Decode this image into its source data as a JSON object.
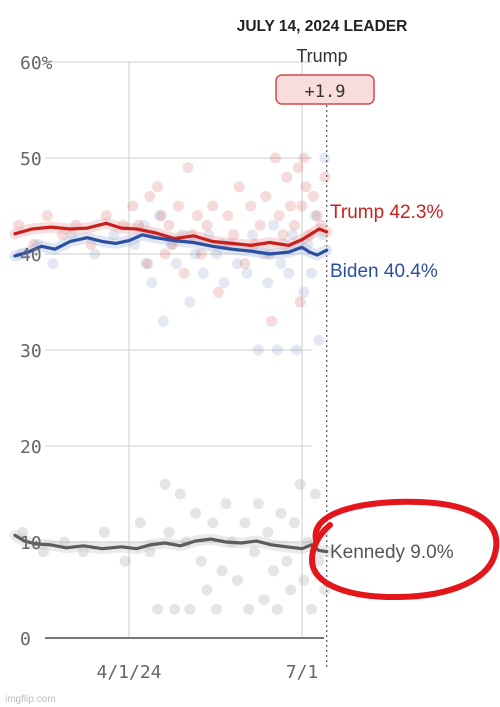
{
  "header": {
    "leader_heading": "JULY 14, 2024 LEADER",
    "leader_name": "Trump",
    "leader_margin": "+1.9"
  },
  "watermark": "imgflip.com",
  "colors": {
    "trump": "#c8201e",
    "biden": "#2b4fa0",
    "kennedy": "#5c5c5c",
    "circle": "#e3161c",
    "grid": "#d6d6d6",
    "axis": "#777777",
    "tick_text": "#666666",
    "badge_fill": "#f9dcdc",
    "badge_stroke": "#d14a4a"
  },
  "annotation": {
    "shape": "hand-drawn ellipse",
    "target": "Kennedy 9.0%"
  },
  "chart_data": {
    "type": "line",
    "ylim": [
      0,
      60
    ],
    "y_ticks": [
      0,
      10,
      20,
      30,
      40,
      50,
      60
    ],
    "y_tick_labels": [
      "0",
      "10",
      "20",
      "30",
      "40",
      "50",
      "60%"
    ],
    "x_tick_labels": [
      {
        "label": "4/1/24",
        "date": "2024-04-01"
      },
      {
        "label": "7/1",
        "date": "2024-07-01"
      }
    ],
    "x_range": [
      "2024-02-01",
      "2024-07-14"
    ],
    "series": [
      {
        "name": "Trump",
        "label": "Trump 42.3%",
        "color": "#c8201e",
        "points": [
          [
            "2024-02-01",
            42.1
          ],
          [
            "2024-02-10",
            42.6
          ],
          [
            "2024-02-20",
            42.8
          ],
          [
            "2024-03-01",
            42.6
          ],
          [
            "2024-03-10",
            42.7
          ],
          [
            "2024-03-20",
            43.2
          ],
          [
            "2024-03-28",
            42.7
          ],
          [
            "2024-04-05",
            42.6
          ],
          [
            "2024-04-15",
            42.2
          ],
          [
            "2024-04-25",
            41.6
          ],
          [
            "2024-05-05",
            41.9
          ],
          [
            "2024-05-15",
            41.3
          ],
          [
            "2024-05-25",
            41.1
          ],
          [
            "2024-06-04",
            40.9
          ],
          [
            "2024-06-14",
            41.2
          ],
          [
            "2024-06-24",
            40.9
          ],
          [
            "2024-07-01",
            41.5
          ],
          [
            "2024-07-06",
            42.1
          ],
          [
            "2024-07-10",
            42.6
          ],
          [
            "2024-07-14",
            42.3
          ]
        ]
      },
      {
        "name": "Biden",
        "label": "Biden 40.4%",
        "color": "#2b4fa0",
        "points": [
          [
            "2024-02-01",
            39.8
          ],
          [
            "2024-02-08",
            40.2
          ],
          [
            "2024-02-15",
            40.8
          ],
          [
            "2024-02-22",
            40.5
          ],
          [
            "2024-03-01",
            41.3
          ],
          [
            "2024-03-10",
            41.7
          ],
          [
            "2024-03-18",
            41.3
          ],
          [
            "2024-03-25",
            41.1
          ],
          [
            "2024-04-01",
            41.4
          ],
          [
            "2024-04-08",
            42.0
          ],
          [
            "2024-04-15",
            41.7
          ],
          [
            "2024-04-25",
            41.4
          ],
          [
            "2024-05-05",
            41.2
          ],
          [
            "2024-05-15",
            40.8
          ],
          [
            "2024-05-25",
            40.5
          ],
          [
            "2024-06-04",
            40.3
          ],
          [
            "2024-06-14",
            40.0
          ],
          [
            "2024-06-24",
            40.2
          ],
          [
            "2024-07-01",
            40.7
          ],
          [
            "2024-07-05",
            40.2
          ],
          [
            "2024-07-09",
            39.9
          ],
          [
            "2024-07-14",
            40.4
          ]
        ]
      },
      {
        "name": "Kennedy",
        "label": "Kennedy 9.0%",
        "color": "#5c5c5c",
        "points": [
          [
            "2024-02-01",
            10.7
          ],
          [
            "2024-02-06",
            10.1
          ],
          [
            "2024-02-12",
            9.8
          ],
          [
            "2024-02-20",
            9.7
          ],
          [
            "2024-02-28",
            9.4
          ],
          [
            "2024-03-08",
            9.6
          ],
          [
            "2024-03-18",
            9.3
          ],
          [
            "2024-03-28",
            9.5
          ],
          [
            "2024-04-05",
            9.3
          ],
          [
            "2024-04-12",
            9.7
          ],
          [
            "2024-04-20",
            9.9
          ],
          [
            "2024-04-28",
            9.6
          ],
          [
            "2024-05-06",
            10.1
          ],
          [
            "2024-05-14",
            10.3
          ],
          [
            "2024-05-22",
            10.0
          ],
          [
            "2024-05-30",
            9.9
          ],
          [
            "2024-06-07",
            10.1
          ],
          [
            "2024-06-15",
            9.7
          ],
          [
            "2024-06-23",
            9.5
          ],
          [
            "2024-07-01",
            9.3
          ],
          [
            "2024-07-06",
            9.7
          ],
          [
            "2024-07-10",
            9.1
          ],
          [
            "2024-07-14",
            9.0
          ]
        ]
      }
    ],
    "polls": {
      "trump": [
        [
          "2024-02-03",
          43
        ],
        [
          "2024-02-11",
          41
        ],
        [
          "2024-02-18",
          44
        ],
        [
          "2024-02-26",
          42
        ],
        [
          "2024-03-04",
          43
        ],
        [
          "2024-03-12",
          41
        ],
        [
          "2024-03-20",
          44
        ],
        [
          "2024-03-29",
          43
        ],
        [
          "2024-04-03",
          45
        ],
        [
          "2024-04-06",
          43
        ],
        [
          "2024-04-10",
          39
        ],
        [
          "2024-04-12",
          46
        ],
        [
          "2024-04-14",
          42
        ],
        [
          "2024-04-16",
          47
        ],
        [
          "2024-04-18",
          44
        ],
        [
          "2024-04-20",
          40
        ],
        [
          "2024-04-22",
          43
        ],
        [
          "2024-04-24",
          41
        ],
        [
          "2024-04-27",
          45
        ],
        [
          "2024-04-30",
          38
        ],
        [
          "2024-05-02",
          49
        ],
        [
          "2024-05-04",
          42
        ],
        [
          "2024-05-07",
          44
        ],
        [
          "2024-05-09",
          40
        ],
        [
          "2024-05-12",
          43
        ],
        [
          "2024-05-15",
          45
        ],
        [
          "2024-05-18",
          36
        ],
        [
          "2024-05-20",
          41
        ],
        [
          "2024-05-23",
          44
        ],
        [
          "2024-05-26",
          42
        ],
        [
          "2024-05-29",
          47
        ],
        [
          "2024-06-01",
          39
        ],
        [
          "2024-06-04",
          45
        ],
        [
          "2024-06-06",
          41
        ],
        [
          "2024-06-09",
          43
        ],
        [
          "2024-06-12",
          46
        ],
        [
          "2024-06-14",
          40
        ],
        [
          "2024-06-17",
          50
        ],
        [
          "2024-06-19",
          44
        ],
        [
          "2024-06-21",
          42
        ],
        [
          "2024-06-23",
          48
        ],
        [
          "2024-06-25",
          45
        ],
        [
          "2024-06-27",
          43
        ],
        [
          "2024-06-29",
          49
        ],
        [
          "2024-07-01",
          45
        ],
        [
          "2024-07-03",
          47
        ],
        [
          "2024-07-05",
          42
        ],
        [
          "2024-07-07",
          46
        ],
        [
          "2024-07-09",
          44
        ],
        [
          "2024-07-11",
          43
        ],
        [
          "2024-07-13",
          48
        ],
        [
          "2024-06-15",
          33
        ],
        [
          "2024-06-30",
          35
        ],
        [
          "2024-07-02",
          50
        ]
      ],
      "biden": [
        [
          "2024-02-04",
          40
        ],
        [
          "2024-02-13",
          41
        ],
        [
          "2024-02-21",
          39
        ],
        [
          "2024-03-02",
          42
        ],
        [
          "2024-03-14",
          40
        ],
        [
          "2024-03-24",
          42
        ],
        [
          "2024-04-04",
          41
        ],
        [
          "2024-04-09",
          43
        ],
        [
          "2024-04-11",
          39
        ],
        [
          "2024-04-13",
          37
        ],
        [
          "2024-04-17",
          44
        ],
        [
          "2024-04-19",
          33
        ],
        [
          "2024-04-23",
          41
        ],
        [
          "2024-04-26",
          39
        ],
        [
          "2024-04-29",
          42
        ],
        [
          "2024-05-03",
          35
        ],
        [
          "2024-05-06",
          40
        ],
        [
          "2024-05-10",
          38
        ],
        [
          "2024-05-13",
          42
        ],
        [
          "2024-05-17",
          40
        ],
        [
          "2024-05-21",
          37
        ],
        [
          "2024-05-24",
          41
        ],
        [
          "2024-05-28",
          39
        ],
        [
          "2024-06-02",
          38
        ],
        [
          "2024-06-05",
          42
        ],
        [
          "2024-06-08",
          30
        ],
        [
          "2024-06-11",
          40
        ],
        [
          "2024-06-13",
          37
        ],
        [
          "2024-06-16",
          43
        ],
        [
          "2024-06-18",
          30
        ],
        [
          "2024-06-20",
          39
        ],
        [
          "2024-06-22",
          41
        ],
        [
          "2024-06-24",
          38
        ],
        [
          "2024-06-26",
          42
        ],
        [
          "2024-06-28",
          30
        ],
        [
          "2024-07-02",
          36
        ],
        [
          "2024-07-04",
          41
        ],
        [
          "2024-07-06",
          38
        ],
        [
          "2024-07-08",
          44
        ],
        [
          "2024-07-10",
          31
        ],
        [
          "2024-07-12",
          42
        ],
        [
          "2024-07-13",
          50
        ]
      ],
      "kennedy": [
        [
          "2024-02-05",
          11
        ],
        [
          "2024-02-16",
          9
        ],
        [
          "2024-02-27",
          10
        ],
        [
          "2024-03-08",
          9
        ],
        [
          "2024-03-19",
          11
        ],
        [
          "2024-03-30",
          8
        ],
        [
          "2024-04-07",
          12
        ],
        [
          "2024-04-12",
          9
        ],
        [
          "2024-04-16",
          3
        ],
        [
          "2024-04-20",
          16
        ],
        [
          "2024-04-22",
          11
        ],
        [
          "2024-04-25",
          3
        ],
        [
          "2024-04-28",
          15
        ],
        [
          "2024-05-01",
          10
        ],
        [
          "2024-05-03",
          3
        ],
        [
          "2024-05-06",
          13
        ],
        [
          "2024-05-09",
          8
        ],
        [
          "2024-05-12",
          5
        ],
        [
          "2024-05-15",
          12
        ],
        [
          "2024-05-17",
          3
        ],
        [
          "2024-05-20",
          7
        ],
        [
          "2024-05-22",
          14
        ],
        [
          "2024-05-25",
          10
        ],
        [
          "2024-05-28",
          6
        ],
        [
          "2024-06-01",
          12
        ],
        [
          "2024-06-03",
          3
        ],
        [
          "2024-06-06",
          9
        ],
        [
          "2024-06-08",
          14
        ],
        [
          "2024-06-11",
          4
        ],
        [
          "2024-06-13",
          11
        ],
        [
          "2024-06-16",
          7
        ],
        [
          "2024-06-18",
          3
        ],
        [
          "2024-06-20",
          13
        ],
        [
          "2024-06-23",
          8
        ],
        [
          "2024-06-25",
          5
        ],
        [
          "2024-06-27",
          12
        ],
        [
          "2024-06-30",
          16
        ],
        [
          "2024-07-02",
          6
        ],
        [
          "2024-07-04",
          10
        ],
        [
          "2024-07-06",
          3
        ],
        [
          "2024-07-08",
          15
        ],
        [
          "2024-07-10",
          8
        ],
        [
          "2024-07-12",
          11
        ],
        [
          "2024-07-13",
          5
        ]
      ]
    }
  }
}
